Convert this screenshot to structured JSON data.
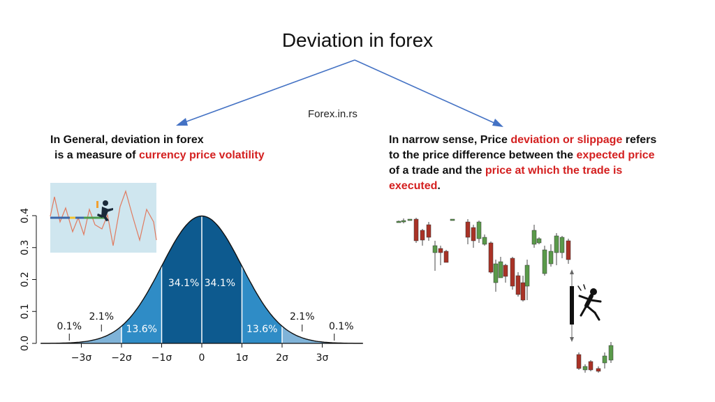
{
  "title": "Deviation in forex",
  "source": "Forex.in.rs",
  "left_text": {
    "line1": "In General, deviation in forex",
    "line2_prefix": "is a measure of",
    "line2_highlight": "currency price volatility"
  },
  "right_text": {
    "p1": "In narrow sense, Price",
    "h1": "deviation or slippage",
    "p2": "refers to the price difference between the",
    "h2": "expected price",
    "p3": "of a trade and the",
    "h3": "price at which the trade is executed",
    "p4": "."
  },
  "colors": {
    "arrow": "#4472c4",
    "highlight": "#d42020",
    "band1": "#0d5a8f",
    "band2": "#2f8cc6",
    "band3": "#7fb3d8",
    "inset_bg": "#cfe6ef",
    "candle_up": "#5a9a4a",
    "candle_down": "#a93226"
  },
  "chart_data": {
    "type": "area",
    "title": "",
    "xlabel": "",
    "ylabel": "",
    "ylim": [
      0,
      0.4
    ],
    "yticks": [
      "0.0",
      "0.1",
      "0.2",
      "0.3",
      "0.4"
    ],
    "xticks": [
      "−3σ",
      "−2σ",
      "−1σ",
      "0",
      "1σ",
      "2σ",
      "3σ"
    ],
    "distribution": "standard normal",
    "bands": [
      {
        "from": -3,
        "to": -2,
        "percent": "2.1%"
      },
      {
        "from": -2,
        "to": -1,
        "percent": "13.6%"
      },
      {
        "from": -1,
        "to": 0,
        "percent": "34.1%"
      },
      {
        "from": 0,
        "to": 1,
        "percent": "34.1%"
      },
      {
        "from": 1,
        "to": 2,
        "percent": "13.6%"
      },
      {
        "from": 2,
        "to": 3,
        "percent": "2.1%"
      }
    ],
    "tails": [
      {
        "side": "left",
        "percent": "0.1%"
      },
      {
        "side": "right",
        "percent": "0.1%"
      }
    ]
  }
}
